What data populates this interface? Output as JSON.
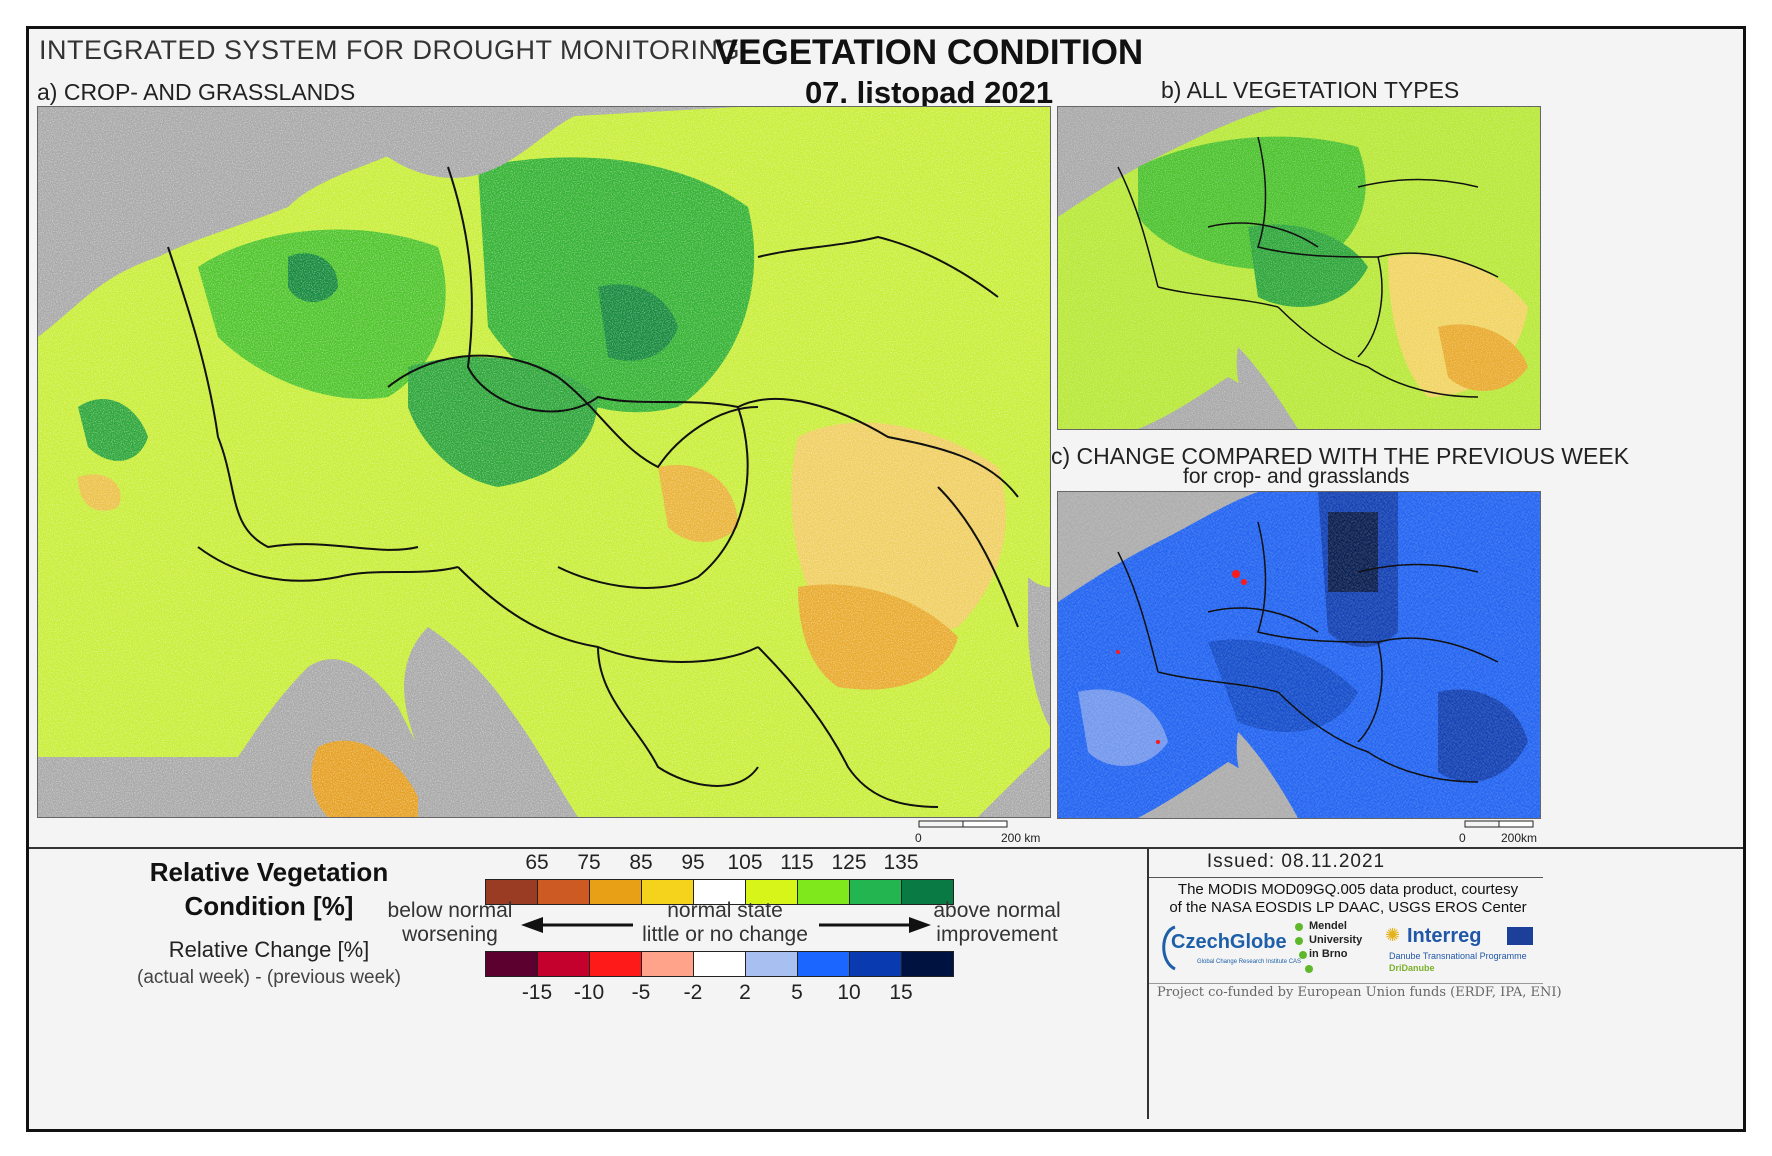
{
  "header": {
    "system_title": "INTEGRATED SYSTEM FOR DROUGHT MONITORING",
    "title": "VEGETATION CONDITION",
    "date": "07. listopad 2021"
  },
  "panels": {
    "a": {
      "label": "a) CROP- AND GRASSLANDS",
      "scale_zero": "0",
      "scale_end": "200 km"
    },
    "b": {
      "label": "b) ALL VEGETATION TYPES"
    },
    "c": {
      "label": "c) CHANGE COMPARED WITH THE PREVIOUS WEEK",
      "sublabel": "for crop- and grasslands",
      "scale_zero": "0",
      "scale_end": "200km"
    }
  },
  "legend": {
    "title_line1": "Relative Vegetation",
    "title_line2": "Condition [%]",
    "change_title": "Relative Change [%]",
    "change_sub": "(actual week) - (previous week)",
    "condition_ticks": [
      "65",
      "75",
      "85",
      "95",
      "105",
      "115",
      "125",
      "135"
    ],
    "condition_colors": [
      "#9a3b23",
      "#cc5a22",
      "#e8a117",
      "#f5d21c",
      "#ffffff",
      "#d8f51a",
      "#7ee81c",
      "#23b550",
      "#0a7a45"
    ],
    "change_ticks": [
      "-15",
      "-10",
      "-5",
      "-2",
      "2",
      "5",
      "10",
      "15"
    ],
    "change_colors": [
      "#5c0030",
      "#c4002c",
      "#ff1a1a",
      "#ffa38a",
      "#ffffff",
      "#a8bff2",
      "#1a66ff",
      "#0a3ab0",
      "#00123f"
    ],
    "below_normal": "below normal",
    "worsening": "worsening",
    "normal_state": "normal state",
    "little_change": "little or no change",
    "above_normal": "above normal",
    "improvement": "improvement"
  },
  "credits": {
    "issued": "Issued: 08.11.2021",
    "courtesy_line1": "The MODIS MOD09GQ.005 data product, courtesy",
    "courtesy_line2": "of the NASA EOSDIS LP DAAC, USGS EROS Center",
    "czechglobe": "CzechGlobe",
    "czechglobe_sub": "Global Change Research Institute CAS",
    "mendel": "Mendel",
    "mendel2": "University",
    "mendel3": "in Brno",
    "interreg": "Interreg",
    "interreg_sub": "Danube Transnational Programme",
    "dridanube": "DriDanube",
    "funded": "Project co-funded by European Union funds (ERDF, IPA, ENI)"
  }
}
